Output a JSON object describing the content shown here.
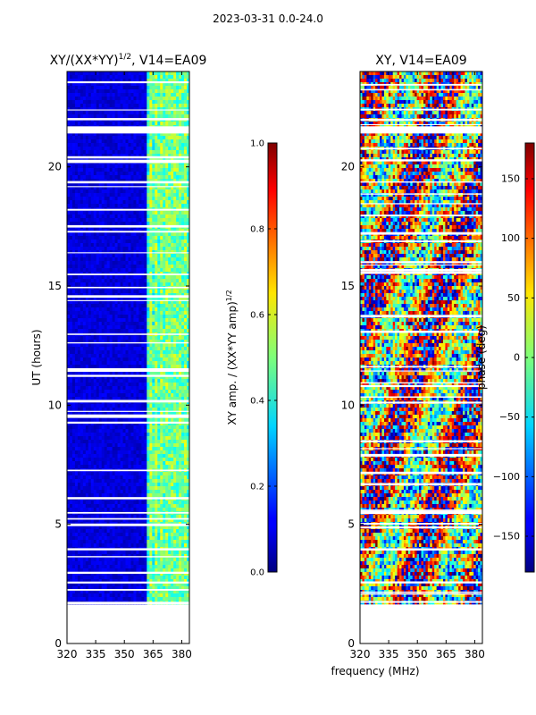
{
  "page_title": "2023-03-31 0.0-24.0",
  "chart_data": [
    {
      "type": "heatmap",
      "title": "XY/(XX*YY)",
      "title_sup": "1/2",
      "title_suffix": ", V14=EA09",
      "ylabel": "UT (hours)",
      "xlabel": "",
      "xlim": [
        320,
        384
      ],
      "ylim": [
        0,
        24
      ],
      "xticks": [
        320,
        335,
        350,
        365,
        380
      ],
      "yticks": [
        0,
        5,
        10,
        15,
        20
      ],
      "data_extent_hours": [
        1.7,
        24.0
      ],
      "colorbar": {
        "label": "XY amp. / (XX*YY amp)",
        "label_sup": "1/2",
        "range": [
          0.0,
          1.0
        ],
        "ticks": [
          "0.0",
          "0.2",
          "0.4",
          "0.6",
          "0.8",
          "1.0"
        ]
      }
    },
    {
      "type": "heatmap",
      "title": "XY, V14=EA09",
      "ylabel": "",
      "xlabel": "frequency (MHz)",
      "xlim": [
        320,
        384
      ],
      "ylim": [
        0,
        24
      ],
      "xticks": [
        320,
        335,
        350,
        365,
        380
      ],
      "yticks": [
        0,
        5,
        10,
        15,
        20
      ],
      "data_extent_hours": [
        1.7,
        24.0
      ],
      "colorbar": {
        "label": "phase (deg)",
        "range": [
          -180,
          180
        ],
        "ticks": [
          "150",
          "100",
          "50",
          "0",
          "−50",
          "−100",
          "−150"
        ]
      }
    }
  ]
}
